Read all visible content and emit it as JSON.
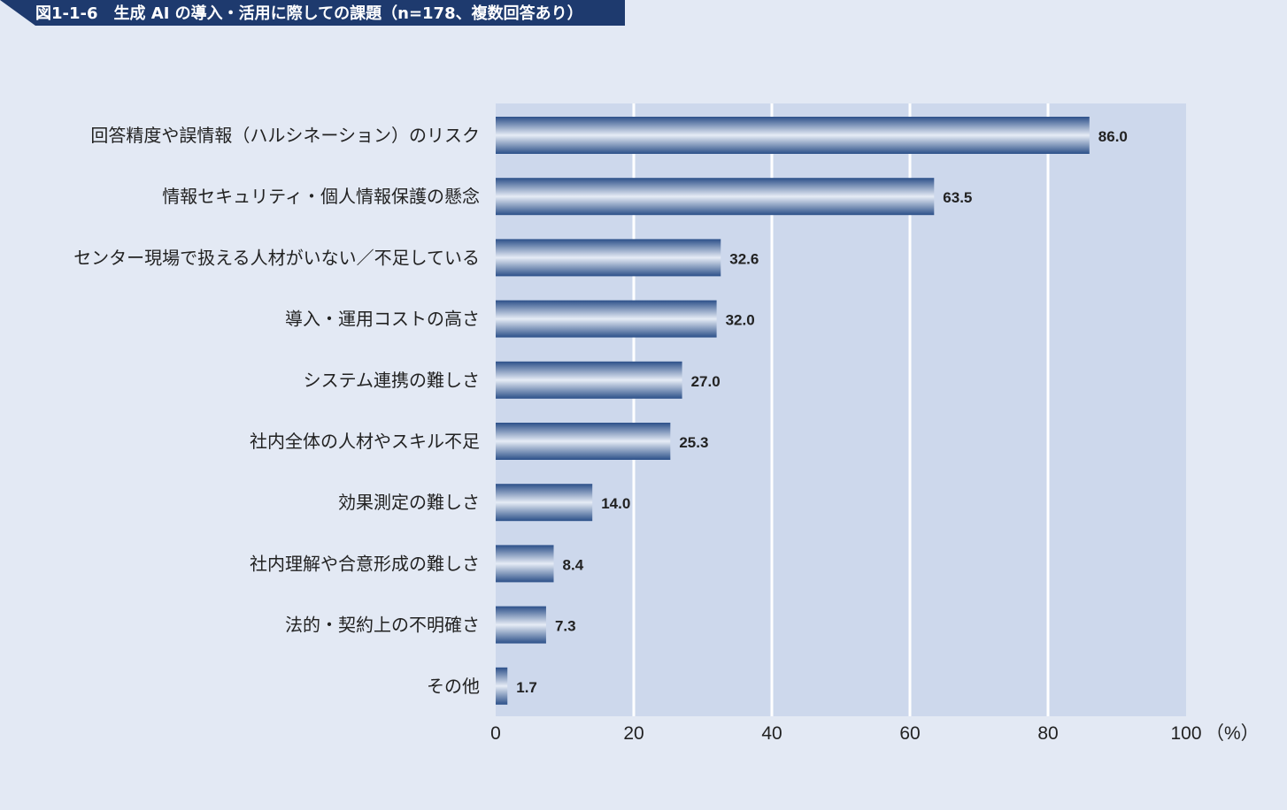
{
  "chart_data": {
    "type": "bar",
    "orientation": "horizontal",
    "title": "図1-1-6　生成 AI の導入・活用に際しての課題（n=178、複数回答あり）",
    "categories": [
      "回答精度や誤情報（ハルシネーション）のリスク",
      "情報セキュリティ・個人情報保護の懸念",
      "センター現場で扱える人材がいない／不足している",
      "導入・運用コストの高さ",
      "システム連携の難しさ",
      "社内全体の人材やスキル不足",
      "効果測定の難しさ",
      "社内理解や合意形成の難しさ",
      "法的・契約上の不明確さ",
      "その他"
    ],
    "values": [
      86.0,
      63.5,
      32.6,
      32.0,
      27.0,
      25.3,
      14.0,
      8.4,
      7.3,
      1.7
    ],
    "value_labels": [
      "86.0",
      "63.5",
      "32.6",
      "32.0",
      "27.0",
      "25.3",
      "14.0",
      "8.4",
      "7.3",
      "1.7"
    ],
    "xlim": [
      0,
      100
    ],
    "xticks": [
      0,
      20,
      40,
      60,
      80,
      100
    ],
    "xtick_labels": [
      "0",
      "20",
      "40",
      "60",
      "80",
      "100"
    ],
    "x_unit": "（%）",
    "grid": true,
    "colors": {
      "bar_dark": "#2c5089",
      "bar_light": "#e6ecf6",
      "plot_bg": "#cdd8ec",
      "page_bg": "#e3e9f4",
      "grid": "#ffffff",
      "title_bg": "#1e3a6e"
    }
  }
}
